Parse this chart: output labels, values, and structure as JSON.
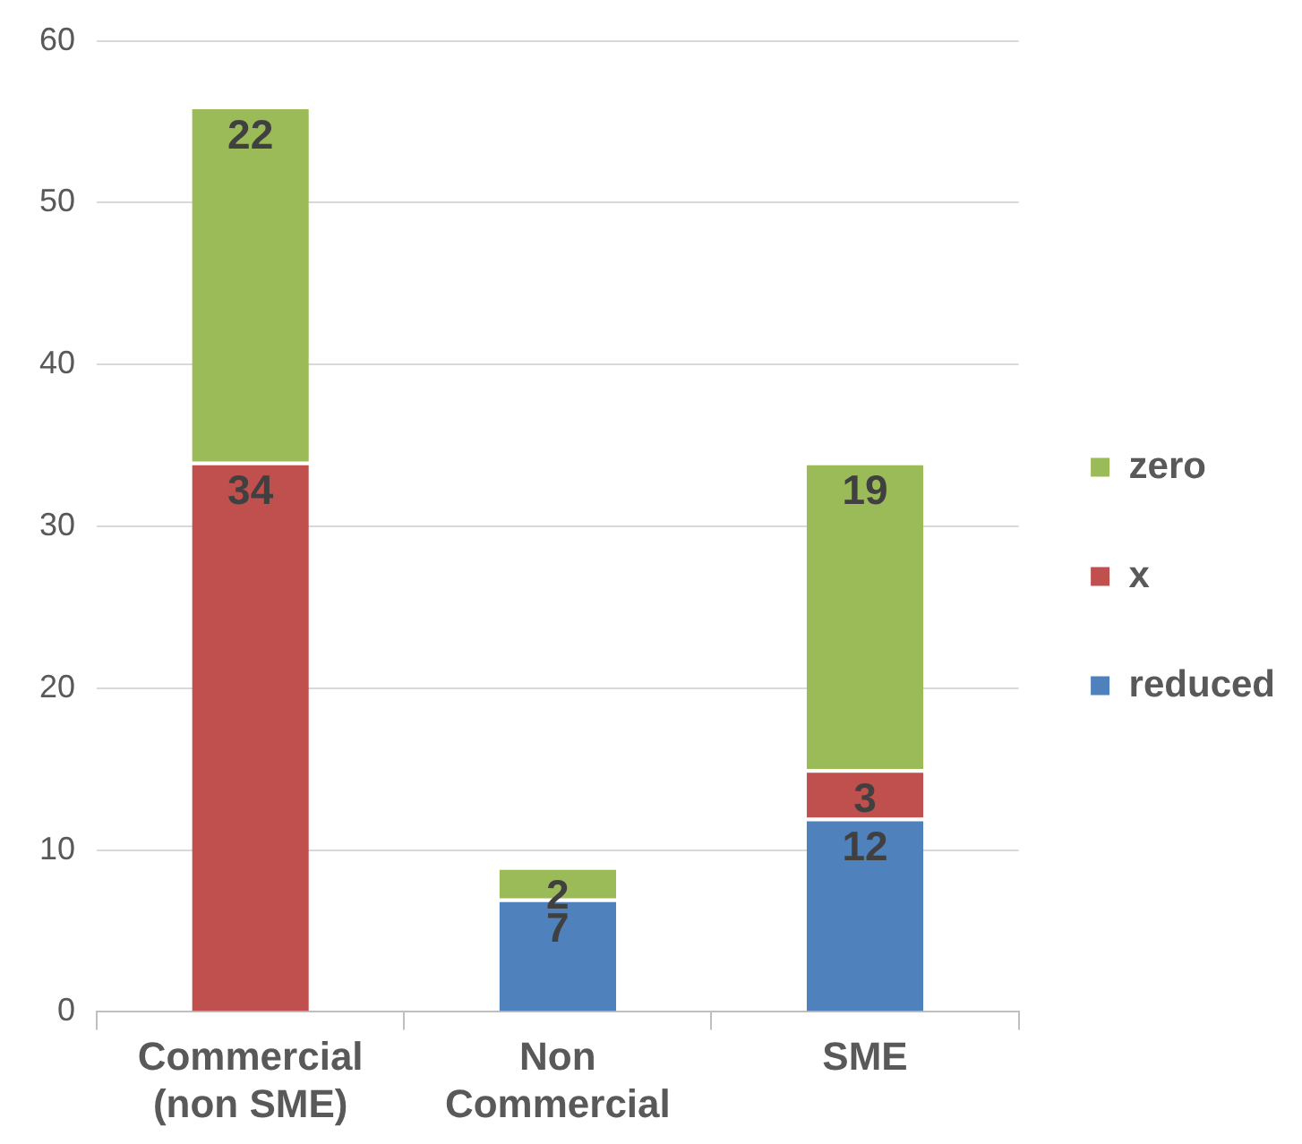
{
  "chart_data": {
    "type": "bar",
    "stacked": true,
    "categories": [
      "Commercial (non SME)",
      "Non Commercial",
      "SME"
    ],
    "series": [
      {
        "name": "reduced",
        "color": "#4f81bd",
        "values": [
          0,
          7,
          12
        ],
        "value_labels": [
          null,
          "7",
          "12"
        ]
      },
      {
        "name": "x",
        "color": "#c0504d",
        "values": [
          34,
          0,
          3
        ],
        "value_labels": [
          "34",
          null,
          "3"
        ]
      },
      {
        "name": "zero",
        "color": "#9bbb59",
        "values": [
          22,
          2,
          19
        ],
        "value_labels": [
          "22",
          "2",
          "19"
        ]
      }
    ],
    "ylim": [
      0,
      60
    ],
    "yticks": [
      0,
      10,
      20,
      30,
      40,
      50,
      60
    ],
    "grid": "y",
    "legend": "right"
  }
}
